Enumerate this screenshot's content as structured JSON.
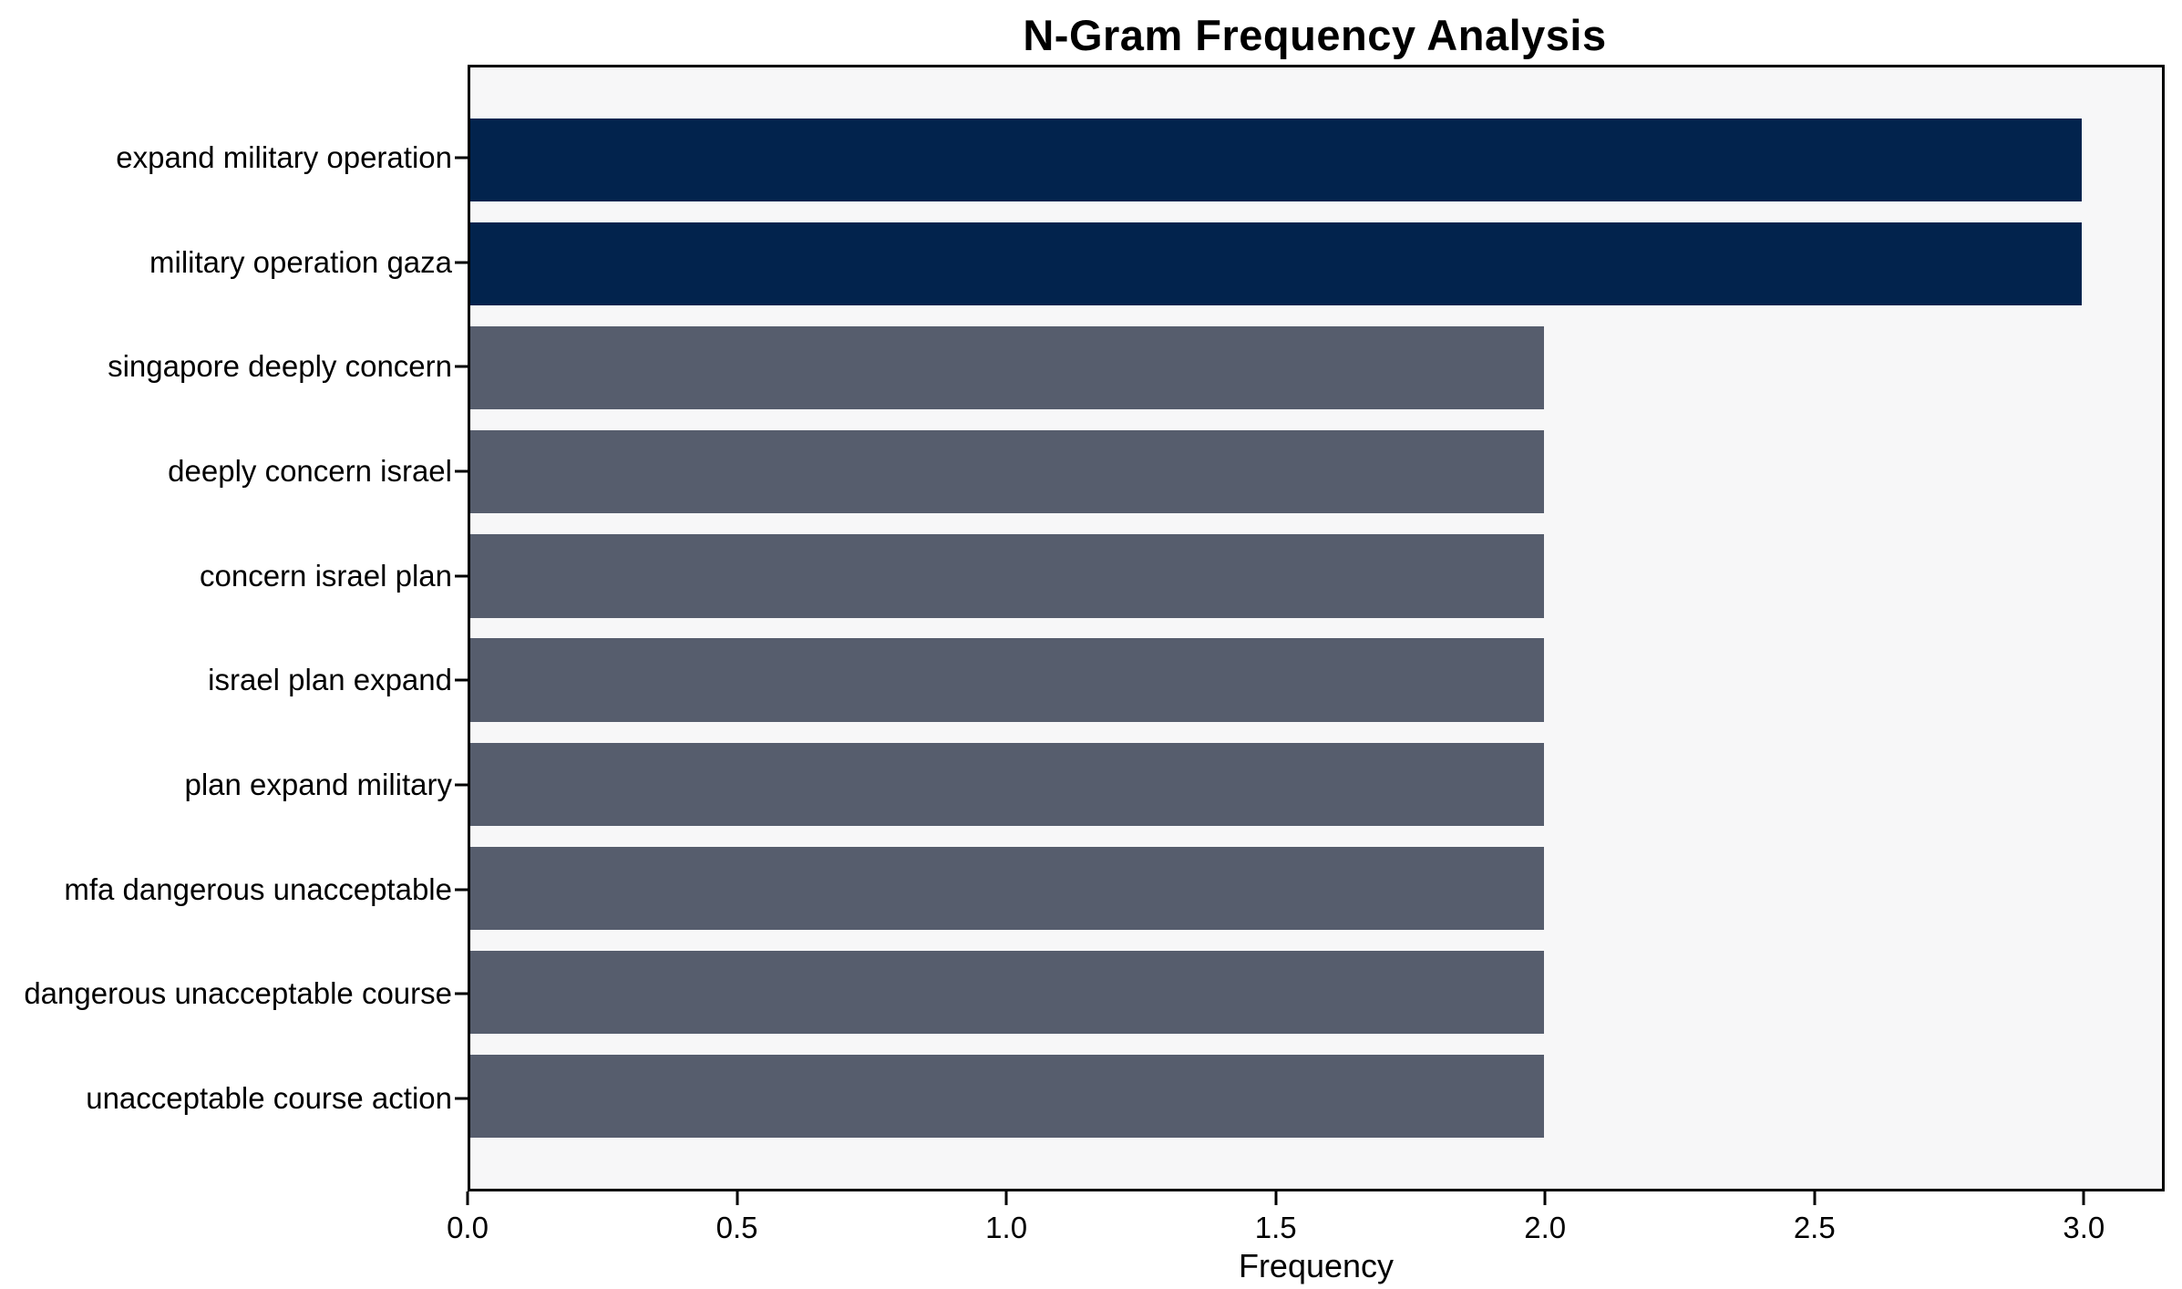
{
  "chart_data": {
    "type": "bar",
    "orientation": "horizontal",
    "title": "N-Gram Frequency Analysis",
    "xlabel": "Frequency",
    "ylabel": "",
    "categories": [
      "expand military operation",
      "military operation gaza",
      "singapore deeply concern",
      "deeply concern israel",
      "concern israel plan",
      "israel plan expand",
      "plan expand military",
      "mfa dangerous unacceptable",
      "dangerous unacceptable course",
      "unacceptable course action"
    ],
    "values": [
      3,
      3,
      2,
      2,
      2,
      2,
      2,
      2,
      2,
      2
    ],
    "bar_colors": [
      "#02234d",
      "#02234d",
      "#565d6d",
      "#565d6d",
      "#565d6d",
      "#565d6d",
      "#565d6d",
      "#565d6d",
      "#565d6d",
      "#565d6d"
    ],
    "xticks": [
      0.0,
      0.5,
      1.0,
      1.5,
      2.0,
      2.5,
      3.0
    ],
    "xlim": [
      0,
      3.15
    ],
    "grid": false,
    "legend": null,
    "colors": {
      "highlight_bar": "#02234d",
      "base_bar": "#565d6d",
      "plot_background": "#f7f7f8",
      "figure_background": "#ffffff",
      "spine": "#000000",
      "text": "#000000"
    }
  }
}
